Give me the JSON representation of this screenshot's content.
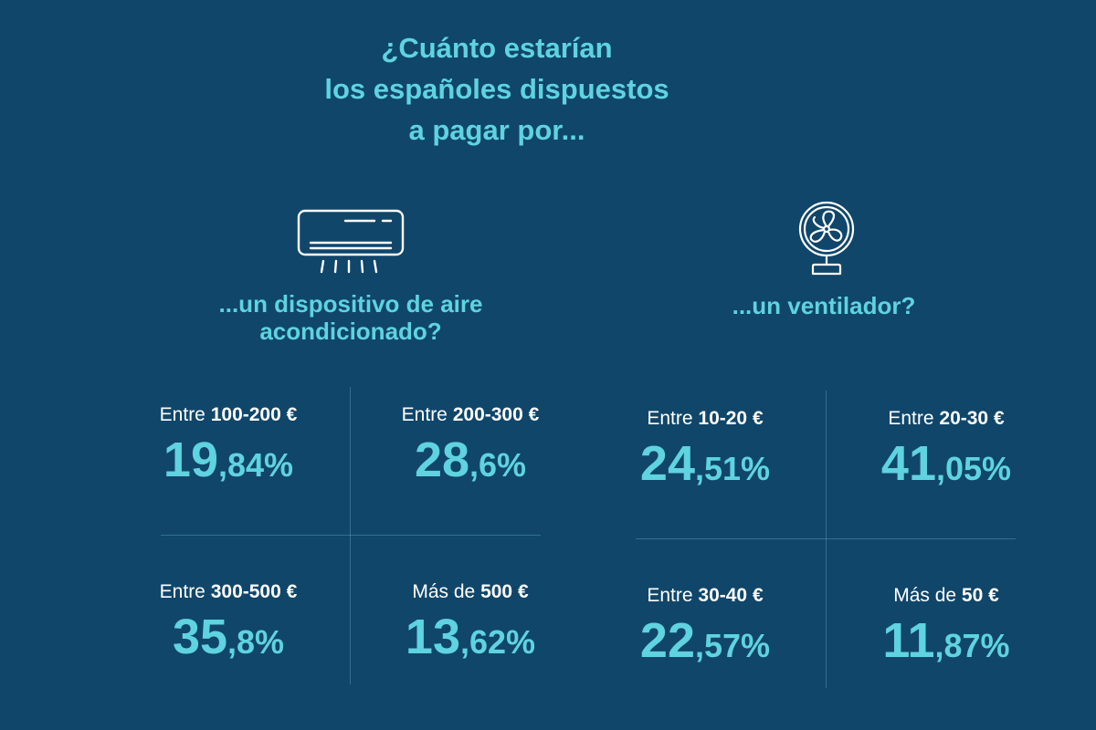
{
  "title": {
    "line1": "¿Cuánto estarían",
    "line2": "los españoles dispuestos",
    "line3": "a pagar por..."
  },
  "colors": {
    "background": "#10466a",
    "accent": "#5fd3e0",
    "text": "#ffffff"
  },
  "air_conditioner": {
    "icon": "air-conditioner-icon",
    "subtitle_line1": "...un dispositivo de aire",
    "subtitle_line2": "acondicionado?",
    "cells": [
      {
        "prefix": "Entre",
        "range": "100-200 €",
        "int": "19",
        "dec": ",84%"
      },
      {
        "prefix": "Entre",
        "range": "200-300 €",
        "int": "28",
        "dec": ",6%"
      },
      {
        "prefix": "Entre",
        "range": "300-500 €",
        "int": "35",
        "dec": ",8%"
      },
      {
        "prefix": "Más de",
        "range": "500 €",
        "int": "13",
        "dec": ",62%"
      }
    ]
  },
  "fan": {
    "icon": "fan-icon",
    "subtitle": "...un ventilador?",
    "cells": [
      {
        "prefix": "Entre",
        "range": "10-20 €",
        "int": "24",
        "dec": ",51%"
      },
      {
        "prefix": "Entre",
        "range": "20-30 €",
        "int": "41",
        "dec": ",05%"
      },
      {
        "prefix": "Entre",
        "range": "30-40 €",
        "int": "22",
        "dec": ",57%"
      },
      {
        "prefix": "Más de",
        "range": "50 €",
        "int": "11",
        "dec": ",87%"
      }
    ]
  }
}
